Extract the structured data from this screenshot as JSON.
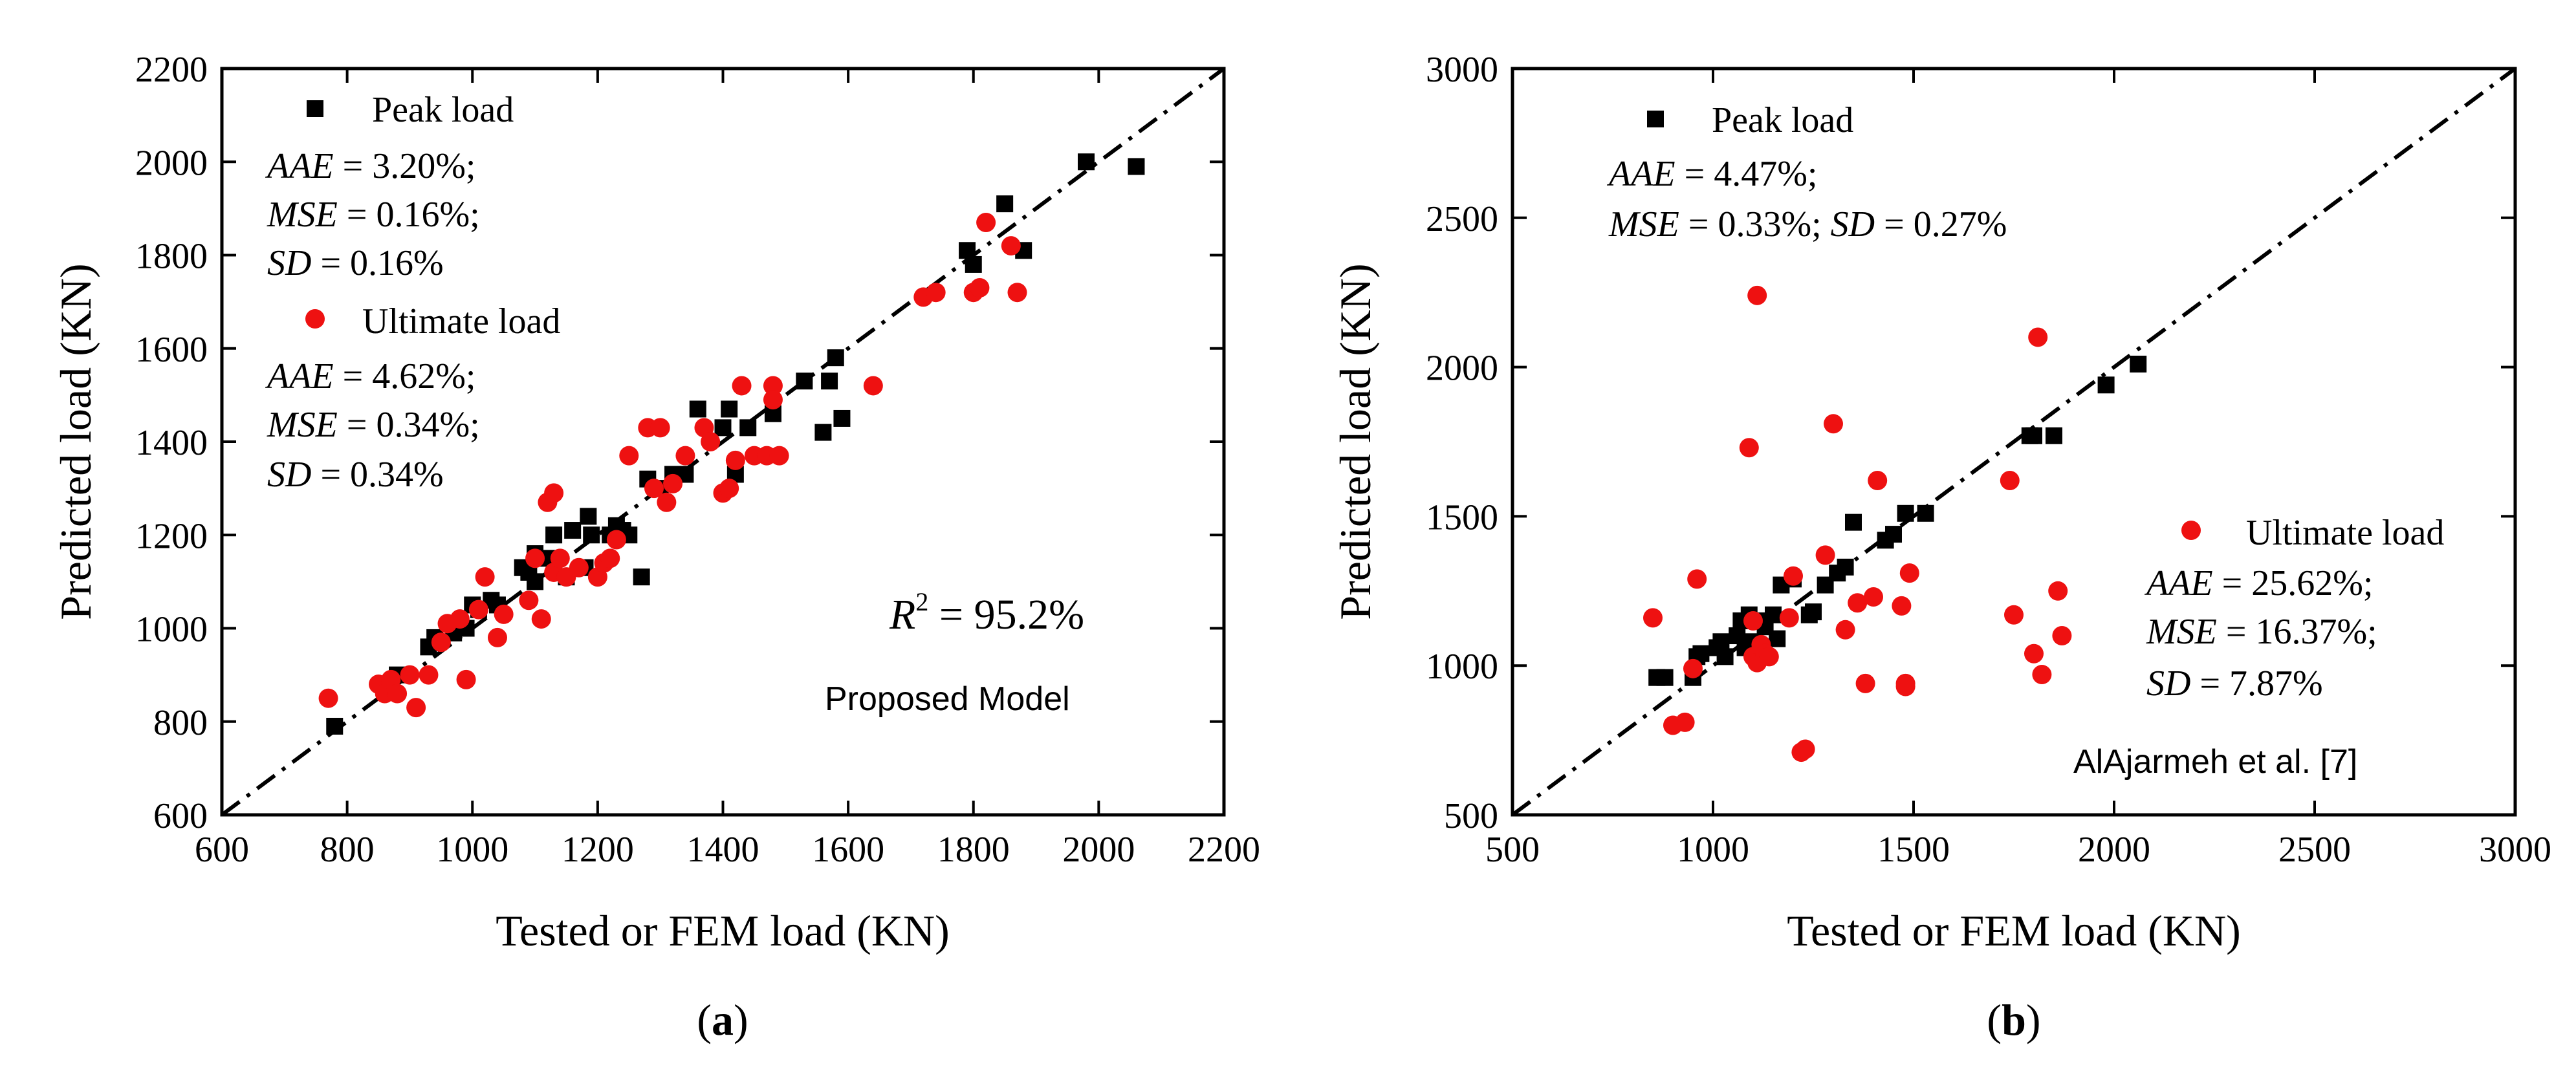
{
  "chart_data": [
    {
      "id": "a",
      "type": "scatter",
      "panel_label": "(a)",
      "xlabel": "Tested or FEM load (KN)",
      "ylabel": "Predicted load (KN)",
      "xlim": [
        600,
        2200
      ],
      "ylim": [
        600,
        2200
      ],
      "xticks": [
        600,
        800,
        1000,
        1200,
        1400,
        1600,
        1800,
        2000,
        2200
      ],
      "yticks": [
        600,
        800,
        1000,
        1200,
        1400,
        1600,
        1800,
        2000,
        2200
      ],
      "xtick_labels": [
        "600",
        "800",
        "1000",
        "1200",
        "1400",
        "1600",
        "1800",
        "2000",
        "2200"
      ],
      "ytick_labels": [
        "600",
        "800",
        "1000",
        "1200",
        "1400",
        "1600",
        "1800",
        "2000",
        "2200"
      ],
      "reference_line": "y = x",
      "annotation_r2": "95.2%",
      "model_label": "Proposed Model",
      "legend": [
        {
          "name": "Peak load",
          "marker": "square",
          "color": "#000000",
          "stats": [
            {
              "key": "AAE",
              "value": "3.20%;"
            },
            {
              "key": "MSE",
              "value": "0.16%;"
            },
            {
              "key": "SD",
              "value": "0.16%"
            }
          ]
        },
        {
          "name": "Ultimate load",
          "marker": "circle",
          "color": "#ee1111",
          "stats": [
            {
              "key": "AAE",
              "value": "4.62%;"
            },
            {
              "key": "MSE",
              "value": "0.34%;"
            },
            {
              "key": "SD",
              "value": "0.34%"
            }
          ]
        }
      ],
      "series": [
        {
          "name": "Peak load",
          "marker": "square",
          "color": "#000000",
          "points": [
            [
              780,
              790
            ],
            [
              880,
              900
            ],
            [
              930,
              960
            ],
            [
              940,
              980
            ],
            [
              970,
              990
            ],
            [
              990,
              1000
            ],
            [
              1000,
              1050
            ],
            [
              1010,
              1040
            ],
            [
              1030,
              1060
            ],
            [
              1040,
              1050
            ],
            [
              1080,
              1130
            ],
            [
              1090,
              1120
            ],
            [
              1100,
              1100
            ],
            [
              1100,
              1160
            ],
            [
              1120,
              1150
            ],
            [
              1130,
              1200
            ],
            [
              1150,
              1110
            ],
            [
              1160,
              1210
            ],
            [
              1180,
              1130
            ],
            [
              1185,
              1240
            ],
            [
              1190,
              1200
            ],
            [
              1220,
              1200
            ],
            [
              1230,
              1220
            ],
            [
              1240,
              1210
            ],
            [
              1250,
              1200
            ],
            [
              1270,
              1110
            ],
            [
              1280,
              1320
            ],
            [
              1300,
              1300
            ],
            [
              1320,
              1330
            ],
            [
              1340,
              1330
            ],
            [
              1360,
              1470
            ],
            [
              1400,
              1430
            ],
            [
              1410,
              1470
            ],
            [
              1420,
              1330
            ],
            [
              1440,
              1430
            ],
            [
              1480,
              1460
            ],
            [
              1530,
              1530
            ],
            [
              1560,
              1420
            ],
            [
              1570,
              1530
            ],
            [
              1580,
              1580
            ],
            [
              1590,
              1450
            ],
            [
              1790,
              1810
            ],
            [
              1800,
              1780
            ],
            [
              1850,
              1910
            ],
            [
              1880,
              1810
            ],
            [
              1980,
              2000
            ],
            [
              2060,
              1990
            ]
          ]
        },
        {
          "name": "Ultimate load",
          "marker": "circle",
          "color": "#ee1111",
          "points": [
            [
              770,
              850
            ],
            [
              850,
              880
            ],
            [
              860,
              860
            ],
            [
              870,
              890
            ],
            [
              880,
              860
            ],
            [
              900,
              900
            ],
            [
              910,
              830
            ],
            [
              930,
              900
            ],
            [
              950,
              970
            ],
            [
              960,
              1010
            ],
            [
              980,
              1020
            ],
            [
              990,
              890
            ],
            [
              1010,
              1040
            ],
            [
              1020,
              1110
            ],
            [
              1040,
              980
            ],
            [
              1050,
              1030
            ],
            [
              1090,
              1060
            ],
            [
              1100,
              1150
            ],
            [
              1110,
              1020
            ],
            [
              1120,
              1270
            ],
            [
              1130,
              1290
            ],
            [
              1130,
              1120
            ],
            [
              1140,
              1150
            ],
            [
              1150,
              1110
            ],
            [
              1170,
              1130
            ],
            [
              1200,
              1110
            ],
            [
              1210,
              1140
            ],
            [
              1220,
              1150
            ],
            [
              1230,
              1190
            ],
            [
              1250,
              1370
            ],
            [
              1280,
              1430
            ],
            [
              1290,
              1300
            ],
            [
              1300,
              1430
            ],
            [
              1310,
              1270
            ],
            [
              1320,
              1310
            ],
            [
              1340,
              1370
            ],
            [
              1370,
              1430
            ],
            [
              1380,
              1400
            ],
            [
              1400,
              1290
            ],
            [
              1410,
              1300
            ],
            [
              1420,
              1360
            ],
            [
              1430,
              1520
            ],
            [
              1450,
              1370
            ],
            [
              1470,
              1370
            ],
            [
              1480,
              1520
            ],
            [
              1480,
              1490
            ],
            [
              1490,
              1370
            ],
            [
              1640,
              1520
            ],
            [
              1720,
              1710
            ],
            [
              1740,
              1720
            ],
            [
              1800,
              1720
            ],
            [
              1810,
              1730
            ],
            [
              1820,
              1870
            ],
            [
              1860,
              1820
            ],
            [
              1870,
              1720
            ]
          ]
        }
      ]
    },
    {
      "id": "b",
      "type": "scatter",
      "panel_label": "(b)",
      "xlabel": "Tested or FEM load (KN)",
      "ylabel": "Predicted load (KN)",
      "xlim": [
        500,
        3000
      ],
      "ylim": [
        500,
        3000
      ],
      "xticks": [
        500,
        1000,
        1500,
        2000,
        2500,
        3000
      ],
      "yticks": [
        500,
        1000,
        1500,
        2000,
        2500,
        3000
      ],
      "xtick_labels": [
        "500",
        "1000",
        "1500",
        "2000",
        "2500",
        "3000"
      ],
      "ytick_labels": [
        "500",
        "1000",
        "1500",
        "2000",
        "2500",
        "3000"
      ],
      "reference_line": "y = x",
      "model_label": "AlAjarmeh et al. [7]",
      "legend": [
        {
          "name": "Peak load",
          "marker": "square",
          "color": "#000000",
          "stats": [
            {
              "key": "AAE",
              "value": "4.47%;"
            },
            {
              "key": "MSE",
              "value": "0.33%;"
            },
            {
              "key": "SD",
              "value": "0.27%"
            }
          ]
        },
        {
          "name": "Ultimate load",
          "marker": "circle",
          "color": "#ee1111",
          "stats": [
            {
              "key": "AAE",
              "value": "25.62%;"
            },
            {
              "key": "MSE",
              "value": "16.37%;"
            },
            {
              "key": "SD",
              "value": "7.87%"
            }
          ]
        }
      ],
      "series": [
        {
          "name": "Peak load",
          "marker": "square",
          "color": "#000000",
          "points": [
            [
              860,
              960
            ],
            [
              880,
              960
            ],
            [
              950,
              960
            ],
            [
              960,
              1030
            ],
            [
              970,
              1040
            ],
            [
              1010,
              1060
            ],
            [
              1020,
              1080
            ],
            [
              1030,
              1030
            ],
            [
              1060,
              1100
            ],
            [
              1070,
              1150
            ],
            [
              1080,
              1060
            ],
            [
              1090,
              1170
            ],
            [
              1100,
              1080
            ],
            [
              1120,
              1150
            ],
            [
              1130,
              1130
            ],
            [
              1150,
              1170
            ],
            [
              1160,
              1090
            ],
            [
              1170,
              1270
            ],
            [
              1200,
              1290
            ],
            [
              1240,
              1170
            ],
            [
              1250,
              1180
            ],
            [
              1280,
              1270
            ],
            [
              1310,
              1310
            ],
            [
              1330,
              1330
            ],
            [
              1350,
              1480
            ],
            [
              1430,
              1420
            ],
            [
              1450,
              1440
            ],
            [
              1480,
              1510
            ],
            [
              1530,
              1510
            ],
            [
              1790,
              1770
            ],
            [
              1800,
              1770
            ],
            [
              1850,
              1770
            ],
            [
              1980,
              1940
            ],
            [
              2060,
              2010
            ]
          ]
        },
        {
          "name": "Ultimate load",
          "marker": "circle",
          "color": "#ee1111",
          "points": [
            [
              850,
              1160
            ],
            [
              900,
              800
            ],
            [
              930,
              810
            ],
            [
              950,
              990
            ],
            [
              960,
              1290
            ],
            [
              1090,
              1730
            ],
            [
              1100,
              1030
            ],
            [
              1100,
              1150
            ],
            [
              1110,
              2240
            ],
            [
              1110,
              1010
            ],
            [
              1120,
              1070
            ],
            [
              1130,
              1040
            ],
            [
              1140,
              1030
            ],
            [
              1190,
              1160
            ],
            [
              1200,
              1300
            ],
            [
              1220,
              710
            ],
            [
              1230,
              720
            ],
            [
              1280,
              1370
            ],
            [
              1300,
              1810
            ],
            [
              1330,
              1120
            ],
            [
              1360,
              1210
            ],
            [
              1380,
              940
            ],
            [
              1400,
              1230
            ],
            [
              1410,
              1620
            ],
            [
              1470,
              1200
            ],
            [
              1480,
              940
            ],
            [
              1480,
              930
            ],
            [
              1490,
              1310
            ],
            [
              1740,
              1620
            ],
            [
              1750,
              1170
            ],
            [
              1800,
              1040
            ],
            [
              1810,
              2100
            ],
            [
              1820,
              970
            ],
            [
              1860,
              1250
            ],
            [
              1870,
              1100
            ]
          ]
        }
      ]
    }
  ]
}
